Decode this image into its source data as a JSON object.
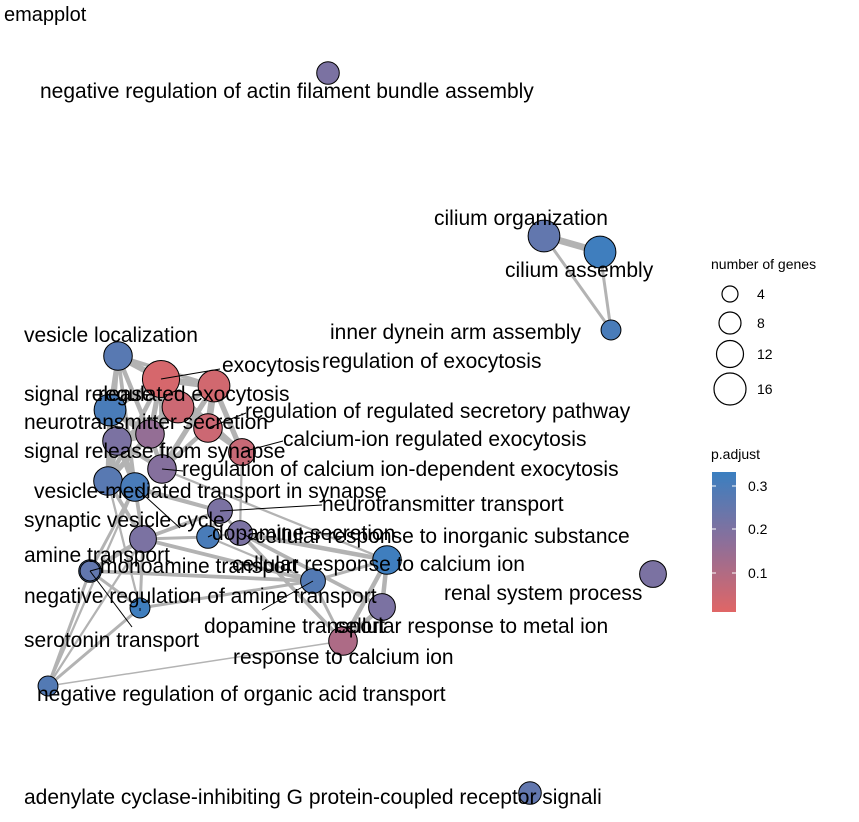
{
  "title": "emapplot",
  "chart_data": {
    "type": "network",
    "title": "emapplot",
    "nodes": [
      {
        "id": "neg_actin",
        "label": "negative regulation of actin filament bundle assembly",
        "size": 3,
        "p_adjust": 0.2
      },
      {
        "id": "cilium_org",
        "label": "cilium organization",
        "size": 8,
        "p_adjust": 0.25
      },
      {
        "id": "cilium_asm",
        "label": "cilium assembly",
        "size": 8,
        "p_adjust": 0.32
      },
      {
        "id": "inner_dynein",
        "label": "inner dynein arm assembly",
        "size": 2,
        "p_adjust": 0.3
      },
      {
        "id": "vesicle_loc",
        "label": "vesicle localization",
        "size": 6,
        "p_adjust": 0.27
      },
      {
        "id": "exocytosis",
        "label": "exocytosis",
        "size": 12,
        "p_adjust": 0.02
      },
      {
        "id": "reg_exo",
        "label": "regulation of exocytosis",
        "size": 8,
        "p_adjust": 0.03
      },
      {
        "id": "signal_release",
        "label": "signal release",
        "size": 8,
        "p_adjust": 0.3
      },
      {
        "id": "regulated_exo",
        "label": "regulated exocytosis",
        "size": 8,
        "p_adjust": 0.04
      },
      {
        "id": "reg_reg_sec",
        "label": "regulation of regulated secretory pathway",
        "size": 6,
        "p_adjust": 0.04
      },
      {
        "id": "nt_secretion",
        "label": "neurotransmitter secretion",
        "size": 6,
        "p_adjust": 0.15
      },
      {
        "id": "ca_reg_exo",
        "label": "calcium-ion regulated exocytosis",
        "size": 5,
        "p_adjust": 0.05
      },
      {
        "id": "signal_release_syn",
        "label": "signal release from synapse",
        "size": 6,
        "p_adjust": 0.2
      },
      {
        "id": "reg_ca_dep_exo",
        "label": "regulation of calcium ion-dependent exocytosis",
        "size": 6,
        "p_adjust": 0.18
      },
      {
        "id": "vesicle_mediated",
        "label": "vesicle-mediated transport in synapse",
        "size": 6,
        "p_adjust": 0.27
      },
      {
        "id": "synaptic_vesicle",
        "label": "synaptic vesicle cycle",
        "size": 6,
        "p_adjust": 0.3
      },
      {
        "id": "nt_transport",
        "label": "neurotransmitter transport",
        "size": 4,
        "p_adjust": 0.2
      },
      {
        "id": "cell_resp_inorg",
        "label": "cellular response to inorganic substance",
        "size": 4,
        "p_adjust": 0.2
      },
      {
        "id": "dopamine_secretion",
        "label": "dopamine secretion",
        "size": 3,
        "p_adjust": 0.3
      },
      {
        "id": "amine_transport",
        "label": "amine transport",
        "size": 5,
        "p_adjust": 0.2
      },
      {
        "id": "monoamine_transport",
        "label": "monoamine transport",
        "size": 3,
        "p_adjust": 0.28
      },
      {
        "id": "cell_resp_ca",
        "label": "cellular response to calcium ion",
        "size": 6,
        "p_adjust": 0.32
      },
      {
        "id": "neg_amine",
        "label": "negative regulation of amine transport",
        "size": 2,
        "p_adjust": 0.32
      },
      {
        "id": "cell_resp_metal",
        "label": "cellular response to metal ion",
        "size": 5,
        "p_adjust": 0.2
      },
      {
        "id": "renal",
        "label": "renal system process",
        "size": 5,
        "p_adjust": 0.2
      },
      {
        "id": "serotonin",
        "label": "serotonin transport",
        "size": 2,
        "p_adjust": 0.25
      },
      {
        "id": "dopamine_transport",
        "label": "dopamine transport",
        "size": 4,
        "p_adjust": 0.28
      },
      {
        "id": "resp_ca",
        "label": "response to calcium ion",
        "size": 6,
        "p_adjust": 0.1
      },
      {
        "id": "neg_org_acid",
        "label": "negative regulation of organic acid transport",
        "size": 2,
        "p_adjust": 0.28
      },
      {
        "id": "adenylate",
        "label": "adenylate cyclase-inhibiting G protein-coupled receptor signali",
        "size": 3,
        "p_adjust": 0.25
      }
    ],
    "legend": {
      "size_title": "number of genes",
      "size_values": [
        "4",
        "8",
        "12",
        "16"
      ],
      "color_title": "p.adjust",
      "color_ticks": [
        "0.3",
        "0.2",
        "0.1"
      ],
      "color_low": "#e06666",
      "color_high": "#3a7fc0"
    }
  }
}
